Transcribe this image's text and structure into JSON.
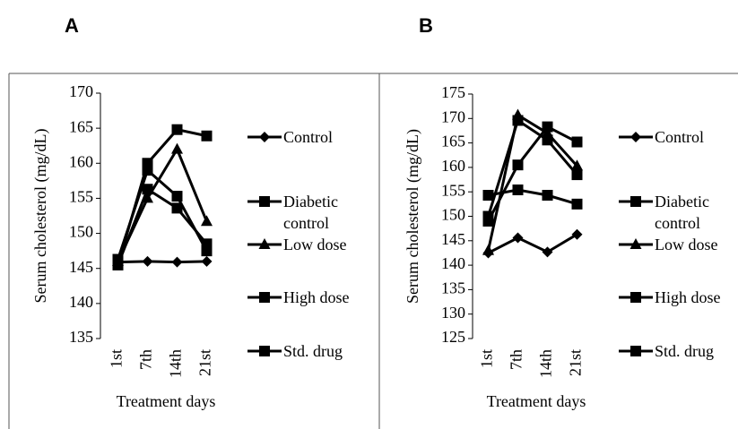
{
  "chart_data": [
    {
      "type": "line",
      "title": "A",
      "y_label": "Serum cholesterol (mg/dL)",
      "x_label": "Treatment days",
      "categories": [
        "1st",
        "7th",
        "14th",
        "21st"
      ],
      "ylim": [
        135,
        170
      ],
      "yticks": [
        135,
        140,
        145,
        150,
        155,
        160,
        165,
        170
      ],
      "series": [
        {
          "name": "Control",
          "color": "#000000",
          "marker": "diamond",
          "values": [
            145.9,
            146,
            145.9,
            146
          ]
        },
        {
          "name": "Diabetic control",
          "color": "#000000",
          "marker": "square",
          "values": [
            145.5,
            156.3,
            153.6,
            148.5
          ]
        },
        {
          "name": "Low dose",
          "color": "#000000",
          "marker": "triangle",
          "values": [
            146,
            155,
            162,
            151.7
          ]
        },
        {
          "name": "High dose",
          "color": "#000000",
          "marker": "square",
          "values": [
            145.5,
            160,
            164.8,
            163.9
          ]
        },
        {
          "name": "Std. drug",
          "color": "#000000",
          "marker": "square",
          "values": [
            146.3,
            159,
            155.3,
            147.5
          ]
        }
      ]
    },
    {
      "type": "line",
      "title": "B",
      "y_label": "Serum cholesterol (mg/dL)",
      "x_label": "Treatment days",
      "categories": [
        "1st",
        "7th",
        "14th",
        "21st"
      ],
      "ylim": [
        125,
        175
      ],
      "yticks": [
        125,
        130,
        135,
        140,
        145,
        150,
        155,
        160,
        165,
        170,
        175
      ],
      "series": [
        {
          "name": "Control",
          "color": "#000000",
          "marker": "diamond",
          "values": [
            142.5,
            145.6,
            142.7,
            146.3
          ]
        },
        {
          "name": "Diabetic control",
          "color": "#000000",
          "marker": "square",
          "values": [
            149,
            160.5,
            168.3,
            165.2
          ]
        },
        {
          "name": "Low dose",
          "color": "#000000",
          "marker": "triangle",
          "values": [
            143,
            170.7,
            167,
            160.3
          ]
        },
        {
          "name": "High dose",
          "color": "#000000",
          "marker": "square",
          "values": [
            150,
            169.6,
            165.6,
            158.5
          ]
        },
        {
          "name": "Std. drug",
          "color": "#000000",
          "marker": "square",
          "values": [
            154.3,
            155.4,
            154.3,
            152.5
          ]
        }
      ]
    }
  ]
}
